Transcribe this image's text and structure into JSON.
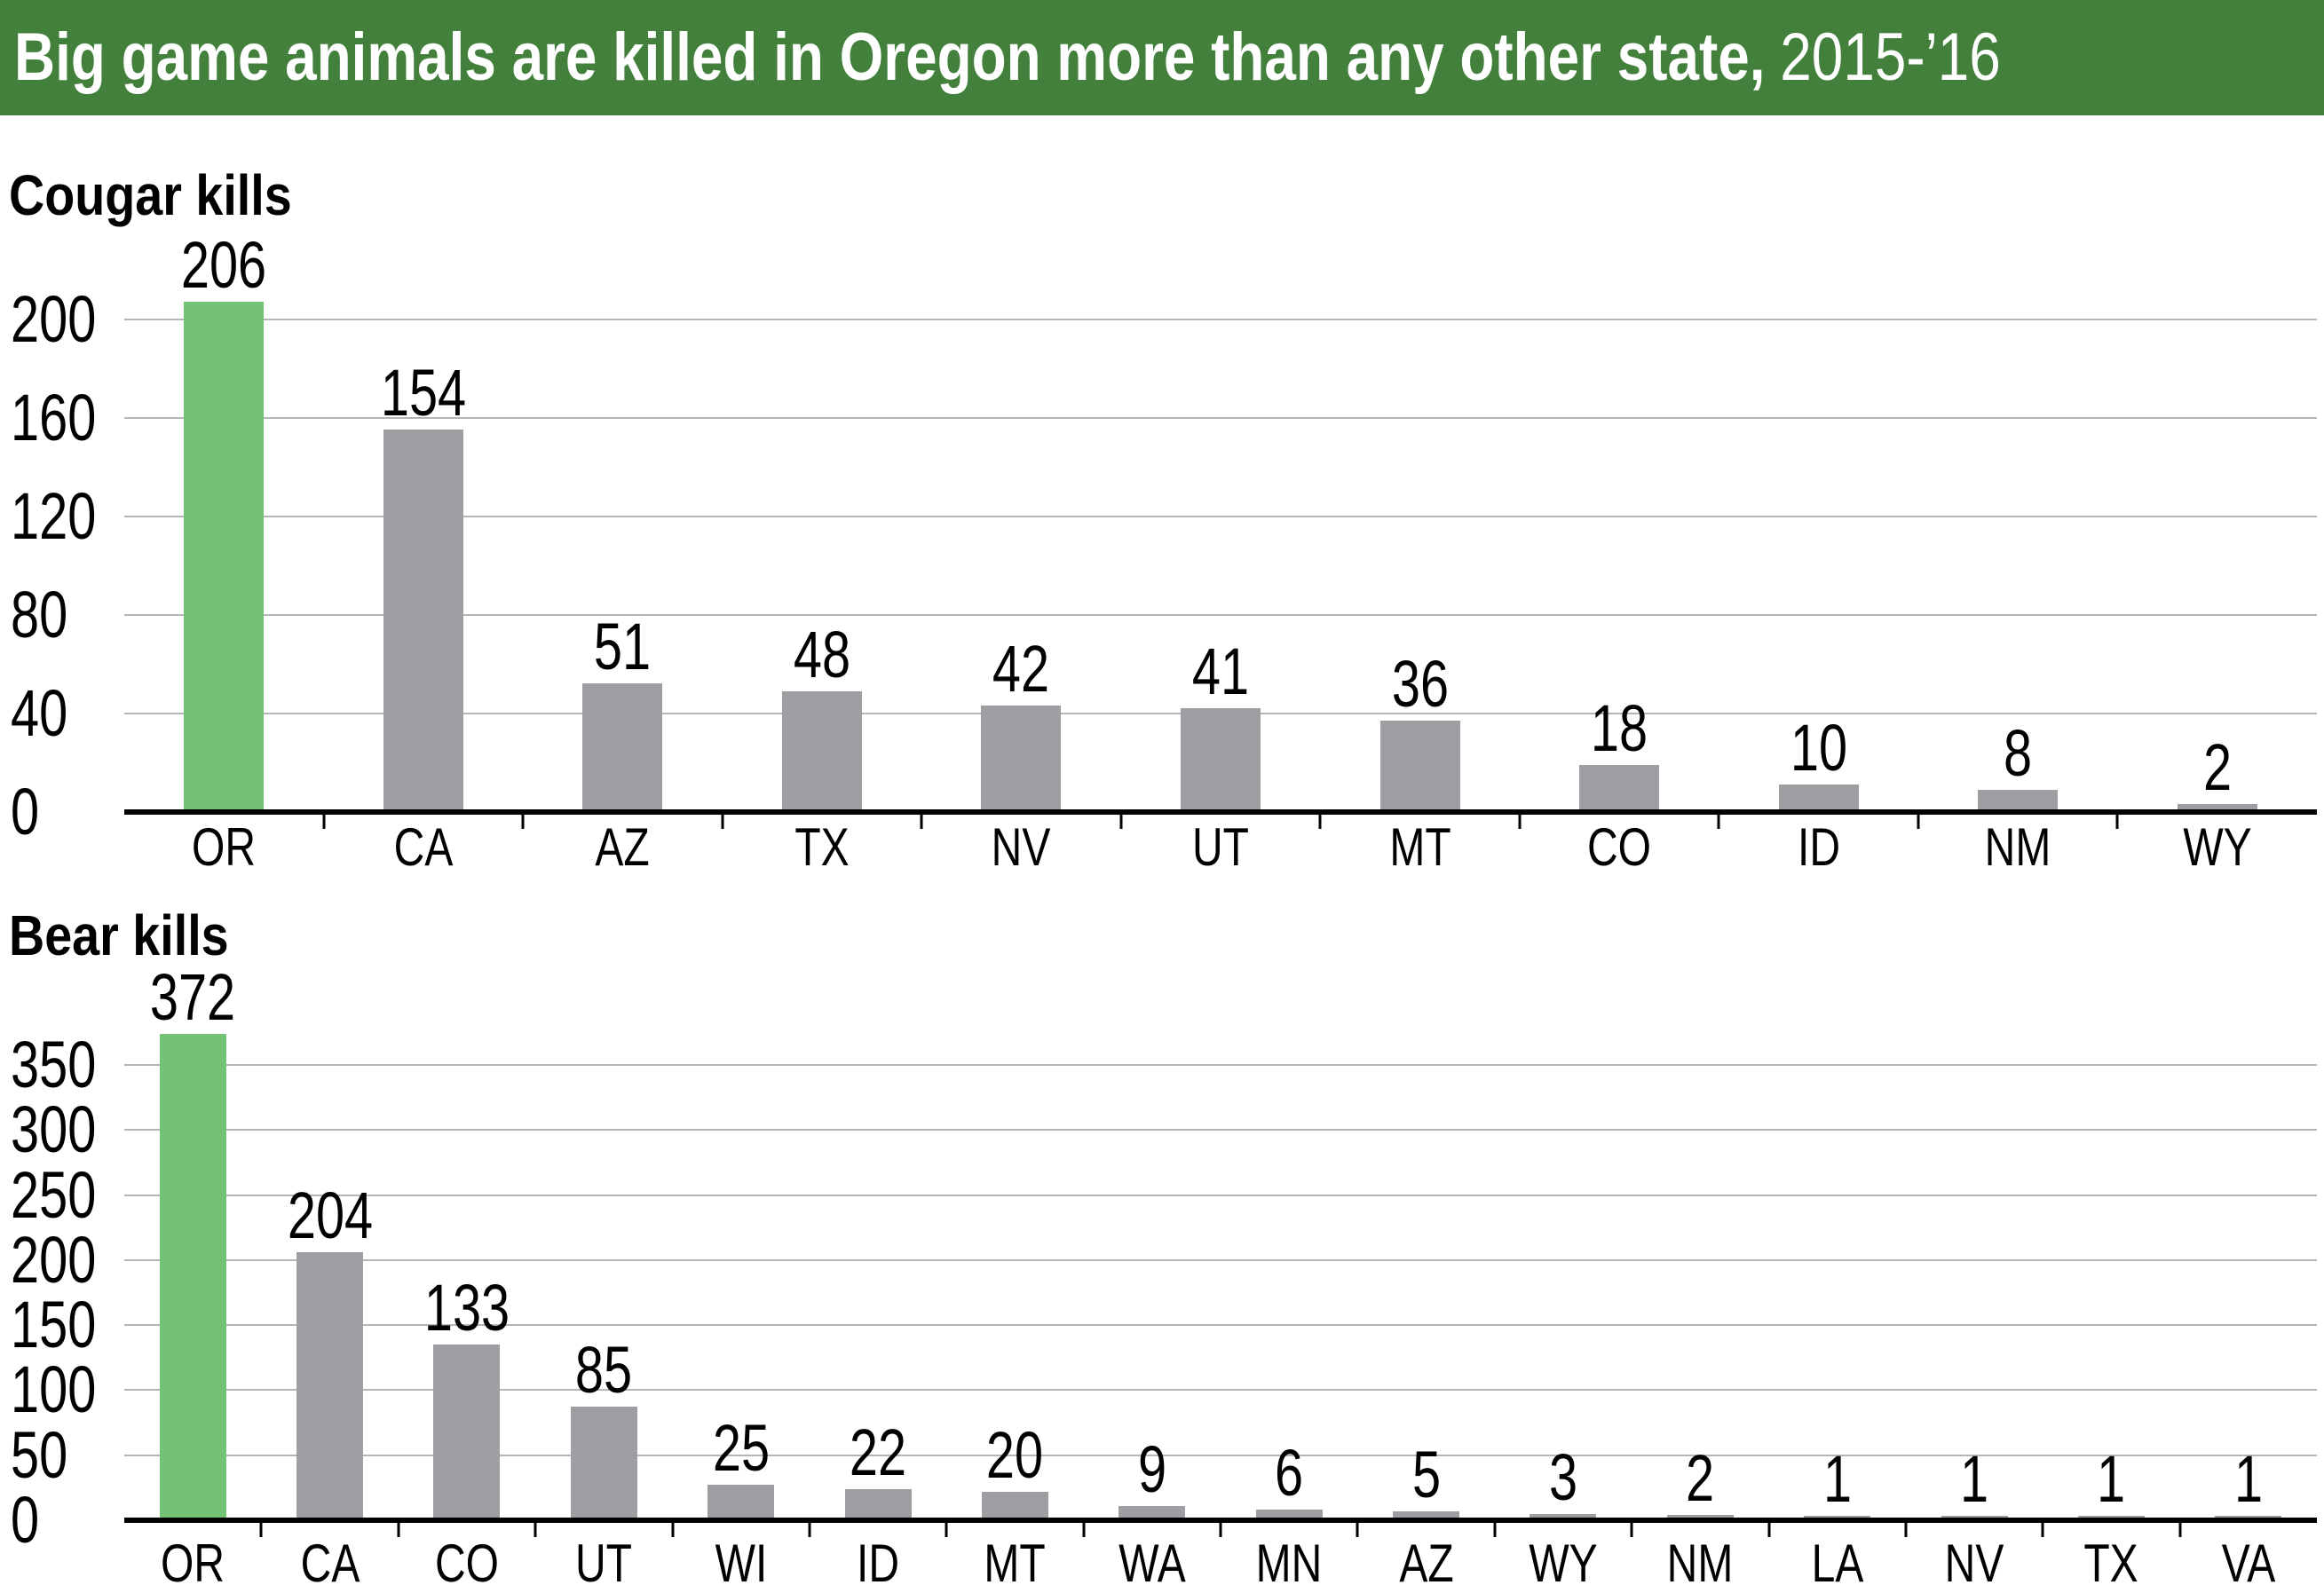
{
  "header": {
    "title_bold": "Big game animals are killed in Oregon more than any other state,",
    "title_regular": "2015-’16"
  },
  "colors": {
    "header_bg": "#42803C",
    "highlight_bar": "#74C374",
    "default_bar": "#9D9FA2",
    "gridline": "#B5B5B5",
    "axis": "#000000",
    "title_text": "#FFFFFF",
    "body_text": "#000000"
  },
  "chart_data": [
    {
      "type": "bar",
      "title": "Cougar kills",
      "categories": [
        "OR",
        "CA",
        "AZ",
        "TX",
        "NV",
        "UT",
        "MT",
        "CO",
        "ID",
        "NM",
        "WY"
      ],
      "values": [
        206,
        154,
        51,
        48,
        42,
        41,
        36,
        18,
        10,
        8,
        2
      ],
      "highlight_category": "OR",
      "ylim": [
        0,
        200
      ],
      "yticks": [
        0,
        40,
        80,
        120,
        160,
        200
      ],
      "grid": "horizontal",
      "legend": "none",
      "xlabel": "",
      "ylabel": ""
    },
    {
      "type": "bar",
      "title": "Bear kills",
      "categories": [
        "OR",
        "CA",
        "CO",
        "UT",
        "WI",
        "ID",
        "MT",
        "WA",
        "MN",
        "AZ",
        "WY",
        "NM",
        "LA",
        "NV",
        "TX",
        "VA"
      ],
      "values": [
        372,
        204,
        133,
        85,
        25,
        22,
        20,
        9,
        6,
        5,
        3,
        2,
        1,
        1,
        1,
        1
      ],
      "highlight_category": "OR",
      "ylim": [
        0,
        350
      ],
      "yticks": [
        0,
        50,
        100,
        150,
        200,
        250,
        300,
        350
      ],
      "grid": "horizontal",
      "legend": "none",
      "xlabel": "",
      "ylabel": ""
    }
  ]
}
